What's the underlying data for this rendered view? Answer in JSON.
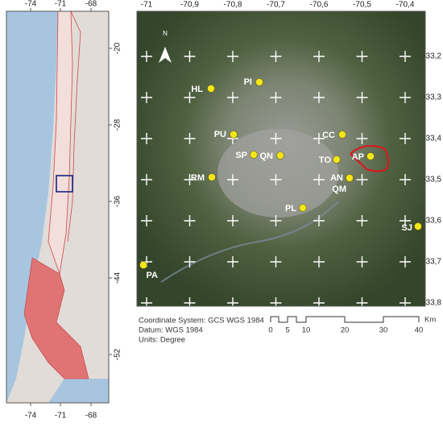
{
  "overview_map": {
    "top_ticks": [
      "-74",
      "-71",
      "-68"
    ],
    "bottom_ticks": [
      "-74",
      "-71",
      "-68"
    ],
    "right_ticks": [
      "-20",
      "-28",
      "-36",
      "-44",
      "-52"
    ]
  },
  "main_map": {
    "north": "N",
    "top_ticks": [
      "-71",
      "-70,9",
      "-70,8",
      "-70,7",
      "-70,6",
      "-70,5",
      "-70,4"
    ],
    "right_ticks": [
      "-33,2",
      "-33,3",
      "-33,4",
      "-33,5",
      "-33,6",
      "-33,7",
      "-33,8"
    ],
    "stations": [
      "HL",
      "PI",
      "PU",
      "CC",
      "SP",
      "QN",
      "TO",
      "AP",
      "RM",
      "AN",
      "QM",
      "PL",
      "SJ",
      "PA"
    ]
  },
  "legend": {
    "lines": [
      "Coordinate System: GCS WGS 1984",
      "Datum: WGS 1984",
      "Units: Degree"
    ],
    "scale_labels": [
      "0",
      "5",
      "10",
      "20",
      "30",
      "40"
    ],
    "scale_unit": "Km"
  }
}
